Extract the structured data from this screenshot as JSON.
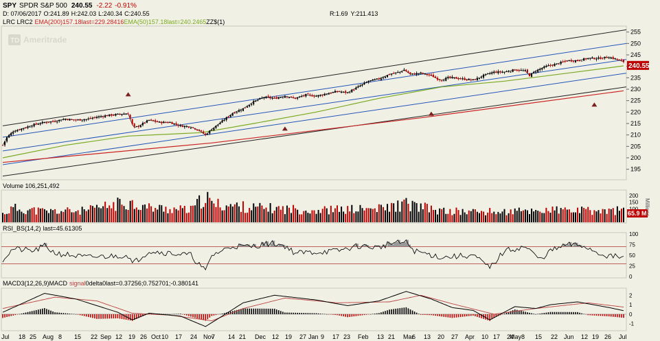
{
  "header": {
    "symbol": "SPY",
    "name": "SPDR S&P 500",
    "last": "240.55",
    "change": "-2.22",
    "change_pct": "-0.91%",
    "date_label": "D: 07/06/2017",
    "open": "O:241.89",
    "high": "H:242.03",
    "low": "L:240.34",
    "close": "C:240.55",
    "r": "R:1.69",
    "y": "Y:211.413",
    "studies_prefix": "LRC LRC2",
    "ema200_label": "EMA(200)",
    "ema200_last": "157.18last=229.28416",
    "ema50_label": "EMA(50)",
    "ema50_last": "157.18last=240.2465",
    "zz_label": "ZZ$(1)",
    "watermark": "Ameritrade",
    "watermark_badge": "TD"
  },
  "colors": {
    "background": "#f0f0e4",
    "price_up": "#000000",
    "price_down": "#c00000",
    "ema200": "#cc2222",
    "ema50": "#7aaa22",
    "channel_outer": "#222222",
    "channel_inner": "#2255bb",
    "last_tag": "#c00000",
    "macd_line": "#000000",
    "signal_line": "#c04040",
    "rsi_fill": "#999999"
  },
  "chart_data": [
    {
      "type": "candlestick",
      "panel": "price",
      "title": "SPY SPDR S&P 500",
      "y_ticks": [
        195,
        200,
        205,
        210,
        215,
        220,
        225,
        230,
        235,
        240,
        245,
        250,
        255
      ],
      "ylim": [
        191,
        257
      ],
      "last_value": 240.55,
      "x_labels": [
        "Jul",
        "18",
        "25",
        "Aug",
        "8",
        "15",
        "22",
        "Sep",
        "12",
        "19",
        "26",
        "Oct",
        "10",
        "17",
        "24",
        "Nov",
        "7",
        "14",
        "21",
        "Dec",
        "12",
        "19",
        "27",
        "Jan",
        "9",
        "17",
        "23",
        "Feb",
        "13",
        "21",
        "Mar",
        "6",
        "13",
        "20",
        "27",
        "Apr",
        "10",
        "17",
        "24",
        "May",
        "8",
        "15",
        "22",
        "Jun",
        "12",
        "19",
        "26",
        "Jul"
      ],
      "close_path": [
        [
          0,
          205.5
        ],
        [
          2,
          209
        ],
        [
          5,
          211.5
        ],
        [
          10,
          213
        ],
        [
          15,
          214.5
        ],
        [
          20,
          215.5
        ],
        [
          25,
          216
        ],
        [
          30,
          217
        ],
        [
          35,
          216.5
        ],
        [
          40,
          216.8
        ],
        [
          45,
          217.8
        ],
        [
          50,
          218.5
        ],
        [
          55,
          219
        ],
        [
          60,
          219.3
        ],
        [
          62,
          214.5
        ],
        [
          63,
          213.3
        ],
        [
          65,
          213.8
        ],
        [
          68,
          215.5
        ],
        [
          70,
          216.5
        ],
        [
          75,
          215.5
        ],
        [
          80,
          215.5
        ],
        [
          85,
          214
        ],
        [
          90,
          213.5
        ],
        [
          94,
          212
        ],
        [
          97,
          210
        ],
        [
          100,
          212.5
        ],
        [
          105,
          216
        ],
        [
          110,
          219.5
        ],
        [
          115,
          221.5
        ],
        [
          120,
          224.5
        ],
        [
          125,
          226.5
        ],
        [
          130,
          226
        ],
        [
          135,
          227
        ],
        [
          140,
          226
        ],
        [
          145,
          227.5
        ],
        [
          150,
          227
        ],
        [
          155,
          228
        ],
        [
          160,
          229
        ],
        [
          165,
          228.5
        ],
        [
          170,
          231
        ],
        [
          175,
          233.5
        ],
        [
          180,
          234.5
        ],
        [
          185,
          236.5
        ],
        [
          190,
          237.5
        ],
        [
          192,
          238.5
        ],
        [
          195,
          236.5
        ],
        [
          200,
          237
        ],
        [
          205,
          236
        ],
        [
          208,
          234.5
        ],
        [
          210,
          234
        ],
        [
          213,
          235
        ],
        [
          215,
          235
        ],
        [
          220,
          234.5
        ],
        [
          225,
          234
        ],
        [
          228,
          235
        ],
        [
          230,
          236
        ],
        [
          235,
          237.5
        ],
        [
          240,
          237.5
        ],
        [
          245,
          238.5
        ],
        [
          250,
          238
        ],
        [
          252,
          236
        ],
        [
          255,
          238
        ],
        [
          260,
          240
        ],
        [
          265,
          241
        ],
        [
          270,
          242.5
        ],
        [
          275,
          242.5
        ],
        [
          280,
          243.5
        ],
        [
          285,
          243.5
        ],
        [
          290,
          244
        ],
        [
          294,
          243
        ],
        [
          297,
          242
        ]
      ],
      "ema50_path": [
        [
          0,
          200
        ],
        [
          30,
          205.5
        ],
        [
          60,
          209.5
        ],
        [
          95,
          211
        ],
        [
          120,
          215
        ],
        [
          150,
          220
        ],
        [
          180,
          226
        ],
        [
          210,
          231
        ],
        [
          240,
          233.5
        ],
        [
          270,
          237
        ],
        [
          297,
          240.2
        ]
      ],
      "ema200_path": [
        [
          0,
          198
        ],
        [
          100,
          206.5
        ],
        [
          200,
          217.5
        ],
        [
          297,
          229.3
        ]
      ],
      "channels": [
        {
          "name": "outer-upper",
          "start": 214,
          "end": 256
        },
        {
          "name": "inner-upper",
          "start": 209,
          "end": 250
        },
        {
          "name": "middle",
          "start": 203,
          "end": 243
        },
        {
          "name": "inner-lower",
          "start": 197,
          "end": 237
        },
        {
          "name": "outer-lower",
          "start": 192,
          "end": 231
        }
      ],
      "markers": [
        [
          60,
          227.8
        ],
        [
          135,
          212.8
        ],
        [
          205,
          219.3
        ],
        [
          283,
          223.3
        ]
      ]
    },
    {
      "type": "bar",
      "panel": "volume",
      "title": "Volume 106,251,492",
      "y_ticks": [
        50,
        100,
        150,
        200
      ],
      "ylabel": "Millions",
      "last_label": "65.9 M",
      "ylim": [
        0,
        230
      ],
      "values_profile": [
        [
          0,
          70
        ],
        [
          5,
          115
        ],
        [
          20,
          90
        ],
        [
          40,
          95
        ],
        [
          55,
          150
        ],
        [
          60,
          165
        ],
        [
          70,
          120
        ],
        [
          90,
          100
        ],
        [
          97,
          210
        ],
        [
          100,
          150
        ],
        [
          120,
          120
        ],
        [
          150,
          100
        ],
        [
          180,
          110
        ],
        [
          193,
          150
        ],
        [
          210,
          90
        ],
        [
          240,
          85
        ],
        [
          260,
          100
        ],
        [
          290,
          90
        ],
        [
          297,
          106
        ]
      ]
    },
    {
      "type": "line",
      "panel": "rsi",
      "title": "RSI_BS(14,2)",
      "last": "45.61305",
      "y_ticks": [
        0,
        25,
        50,
        75,
        100
      ],
      "levels": [
        70,
        30
      ],
      "ylim": [
        0,
        100
      ]
    },
    {
      "type": "line",
      "panel": "macd",
      "title": "MACD3(12,26,9)",
      "legend": [
        "MACD",
        "signal",
        "delta"
      ],
      "last": "0.37256;0.752701;-0.380141",
      "y_ticks": [
        -1,
        0,
        1,
        2
      ],
      "ylim": [
        -1.6,
        2.6
      ]
    }
  ],
  "panels": {
    "volume_title": "Volume 106,251,492",
    "rsi_title_prefix": "RSI_BS(14,2)",
    "rsi_title_last": "last=45.61305",
    "macd_title_prefix": "MACD3(12,26,9)",
    "macd_title_macd": "MACD",
    "macd_title_signal": "signal",
    "macd_title_sep": "0",
    "macd_title_delta": "delta",
    "macd_title_last": "0last=0.37256;0.752701;-0.380141",
    "volume_unit_label": "Millions",
    "volume_last_label": "65.9 M",
    "price_last_label": "240.55"
  }
}
